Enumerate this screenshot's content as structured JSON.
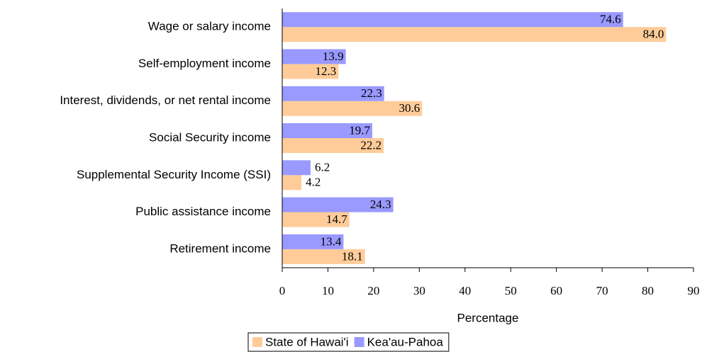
{
  "chart_data": {
    "type": "bar",
    "orientation": "horizontal",
    "categories": [
      "Wage or salary income",
      "Self-employment income",
      "Interest, dividends, or net rental income",
      "Social Security income",
      "Supplemental Security Income (SSI)",
      "Public assistance income",
      "Retirement income"
    ],
    "series": [
      {
        "name": "State of Hawai'i",
        "color": "#ffcc99",
        "values": [
          84.0,
          12.3,
          30.6,
          22.2,
          4.2,
          14.7,
          18.1
        ],
        "value_labels": [
          "84.0",
          "12.3",
          "30.6",
          "22.2",
          "4.2",
          "14.7",
          "18.1"
        ]
      },
      {
        "name": "Kea'au-Pahoa",
        "color": "#9999ff",
        "values": [
          74.6,
          13.9,
          22.3,
          19.7,
          6.2,
          24.3,
          13.4
        ],
        "value_labels": [
          "74.6",
          "13.9",
          "22.3",
          "19.7",
          "6.2",
          "24.3",
          "13.4"
        ]
      }
    ],
    "xlabel": "Percentage",
    "xlim": [
      0,
      90
    ],
    "xticks": [
      0,
      10,
      20,
      30,
      40,
      50,
      60,
      70,
      80,
      90
    ],
    "legend": "bottom"
  }
}
